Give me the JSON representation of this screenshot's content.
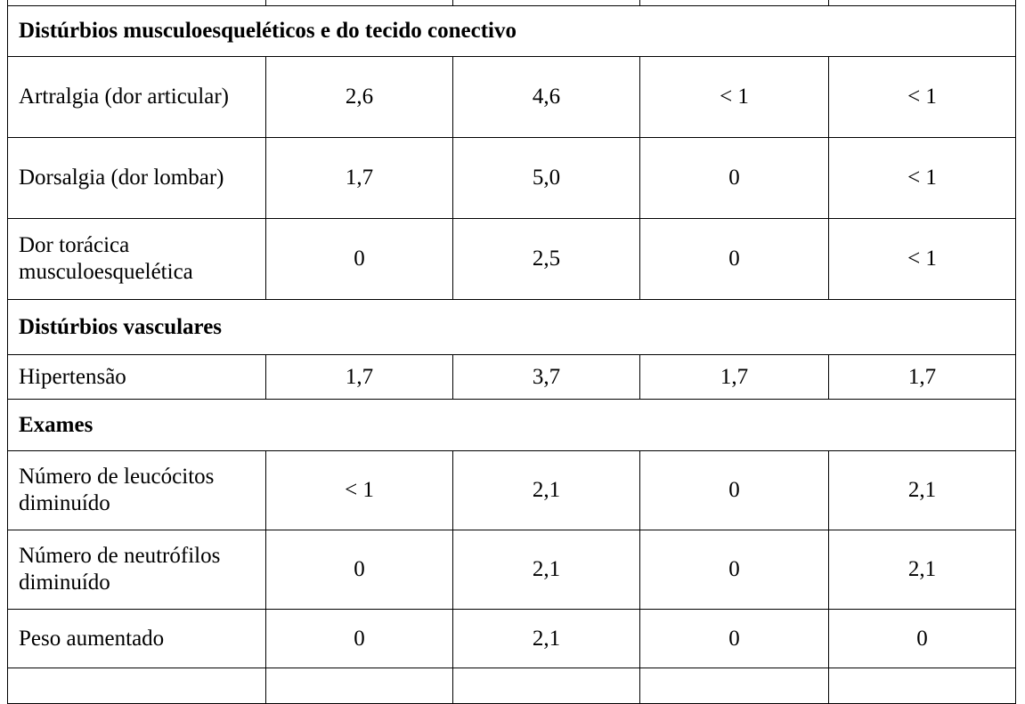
{
  "sections": [
    {
      "title": "Distúrbios musculoesqueléticos e do tecido conectivo",
      "rows": [
        {
          "label": "Artralgia (dor articular)",
          "values": [
            "2,6",
            "4,6",
            "< 1",
            "< 1"
          ]
        },
        {
          "label": "Dorsalgia (dor lombar)",
          "values": [
            "1,7",
            "5,0",
            "0",
            "< 1"
          ]
        },
        {
          "label": "Dor torácica musculoesquelética",
          "values": [
            "0",
            "2,5",
            "0",
            "< 1"
          ]
        }
      ]
    },
    {
      "title": "Distúrbios vasculares",
      "rows": [
        {
          "label": "Hipertensão",
          "values": [
            "1,7",
            "3,7",
            "1,7",
            "1,7"
          ]
        }
      ]
    },
    {
      "title": "Exames",
      "rows": [
        {
          "label": "Número de leucócitos diminuído",
          "values": [
            "< 1",
            "2,1",
            "0",
            "2,1"
          ]
        },
        {
          "label": "Número de neutrófilos diminuído",
          "values": [
            "0",
            "2,1",
            "0",
            "2,1"
          ]
        },
        {
          "label": "Peso aumentado",
          "values": [
            "0",
            "2,1",
            "0",
            "0"
          ]
        }
      ]
    }
  ]
}
